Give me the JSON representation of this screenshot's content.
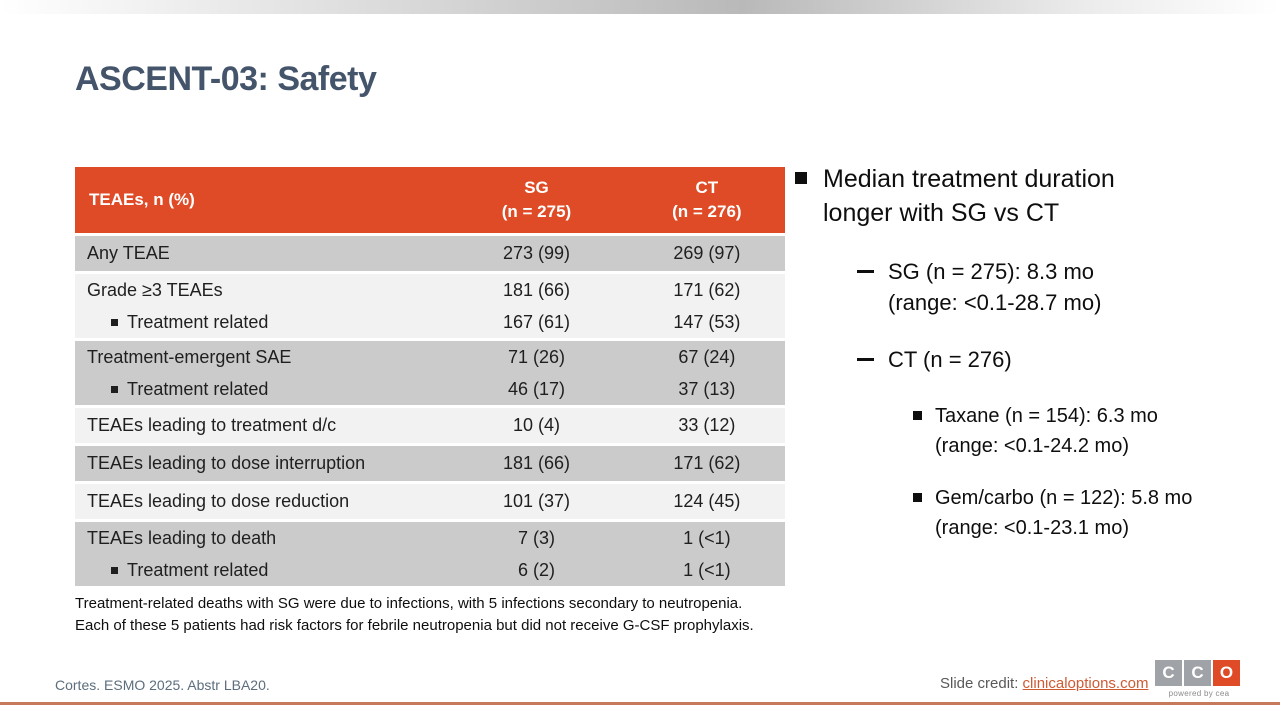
{
  "colors": {
    "accent_orange": "#DE4B26",
    "row_gray": "#CBCBCB",
    "row_light": "#F2F2F2",
    "title_color": "#44546A",
    "footer_text": "#5C6E7E",
    "link_color": "#CE5B33",
    "bottom_line": "#C7795B",
    "logo_gray": "#9FA3A8"
  },
  "header": {
    "title": "ASCENT-03: Safety"
  },
  "table": {
    "columns": {
      "label": "TEAEs, n (%)",
      "sg": "SG\n(n = 275)",
      "ct": "CT\n(n = 276)"
    },
    "rows": [
      {
        "cells": [
          {
            "label": "Any TEAE",
            "sg": "273 (99)",
            "ct": "269 (97)"
          }
        ]
      },
      {
        "cells": [
          {
            "label": "Grade ≥3 TEAEs",
            "sg": "181 (66)",
            "ct": "171 (62)"
          },
          {
            "label": "Treatment related",
            "sg": "167 (61)",
            "ct": "147 (53)"
          }
        ]
      },
      {
        "cells": [
          {
            "label": "Treatment-emergent SAE",
            "sg": "71 (26)",
            "ct": "67 (24)"
          },
          {
            "label": "Treatment related",
            "sg": "46 (17)",
            "ct": "37 (13)"
          }
        ]
      },
      {
        "cells": [
          {
            "label": "TEAEs leading to treatment d/c",
            "sg": "10 (4)",
            "ct": "33 (12)"
          }
        ]
      },
      {
        "cells": [
          {
            "label": "TEAEs leading to dose interruption",
            "sg": "181 (66)",
            "ct": "171 (62)"
          }
        ]
      },
      {
        "cells": [
          {
            "label": "TEAEs leading to dose reduction",
            "sg": "101 (37)",
            "ct": "124 (45)"
          }
        ]
      },
      {
        "cells": [
          {
            "label": "TEAEs leading to death",
            "sg": "7 (3)",
            "ct": "1 (<1)"
          },
          {
            "label": "Treatment related",
            "sg": "6 (2)",
            "ct": "1 (<1)"
          }
        ]
      }
    ],
    "footnote": "Treatment-related deaths with SG were due to infections, with 5 infections secondary to neutropenia. Each of these 5 patients had risk factors for febrile neutropenia but did not receive G-CSF prophylaxis."
  },
  "bullets": {
    "main": "Median treatment duration\nlonger with SG vs CT",
    "sg": "SG (n = 275): 8.3 mo\n(range: <0.1-28.7 mo)",
    "ct": "CT (n = 276)",
    "taxane": "Taxane (n = 154): 6.3 mo\n(range: <0.1-24.2 mo)",
    "gem_carbo": "Gem/carbo (n = 122): 5.8 mo\n(range: <0.1-23.1 mo)"
  },
  "footer": {
    "citation": "Cortes. ESMO 2025. Abstr LBA20.",
    "credit_label": "Slide credit: ",
    "credit_link": "clinicaloptions.com",
    "logo_letters": [
      "C",
      "C",
      "O"
    ],
    "logo_tagline": "powered by cea"
  }
}
